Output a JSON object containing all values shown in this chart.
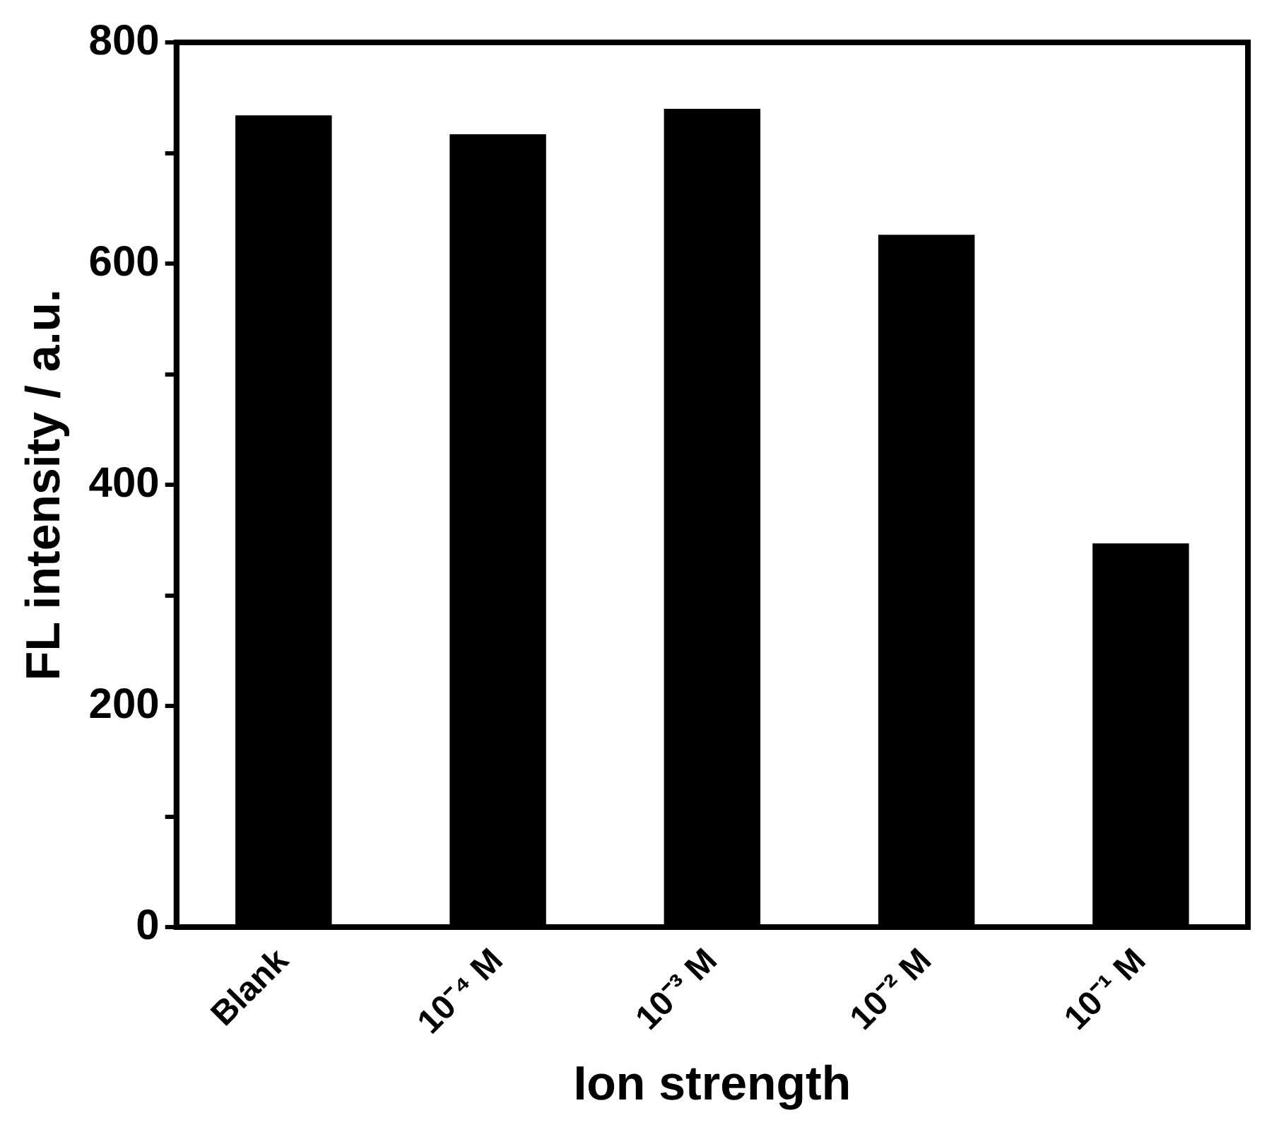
{
  "chart_data": {
    "type": "bar",
    "xlabel": "Ion strength",
    "ylabel": "FL intensity / a.u.",
    "categories": [
      "Blank",
      "10⁻⁴ M",
      "10⁻³ M",
      "10⁻² M",
      "10⁻¹ M"
    ],
    "values": [
      734,
      717,
      740,
      626,
      347
    ],
    "color": "#000000",
    "ylim": [
      0,
      800
    ],
    "yticks": [
      0,
      {
        "value": 100,
        "label": null
      },
      200,
      {
        "value": 300,
        "label": null
      },
      400,
      {
        "value": 500,
        "label": null
      },
      600,
      {
        "value": 700,
        "label": null
      },
      800
    ],
    "grid": false,
    "legend": false
  }
}
